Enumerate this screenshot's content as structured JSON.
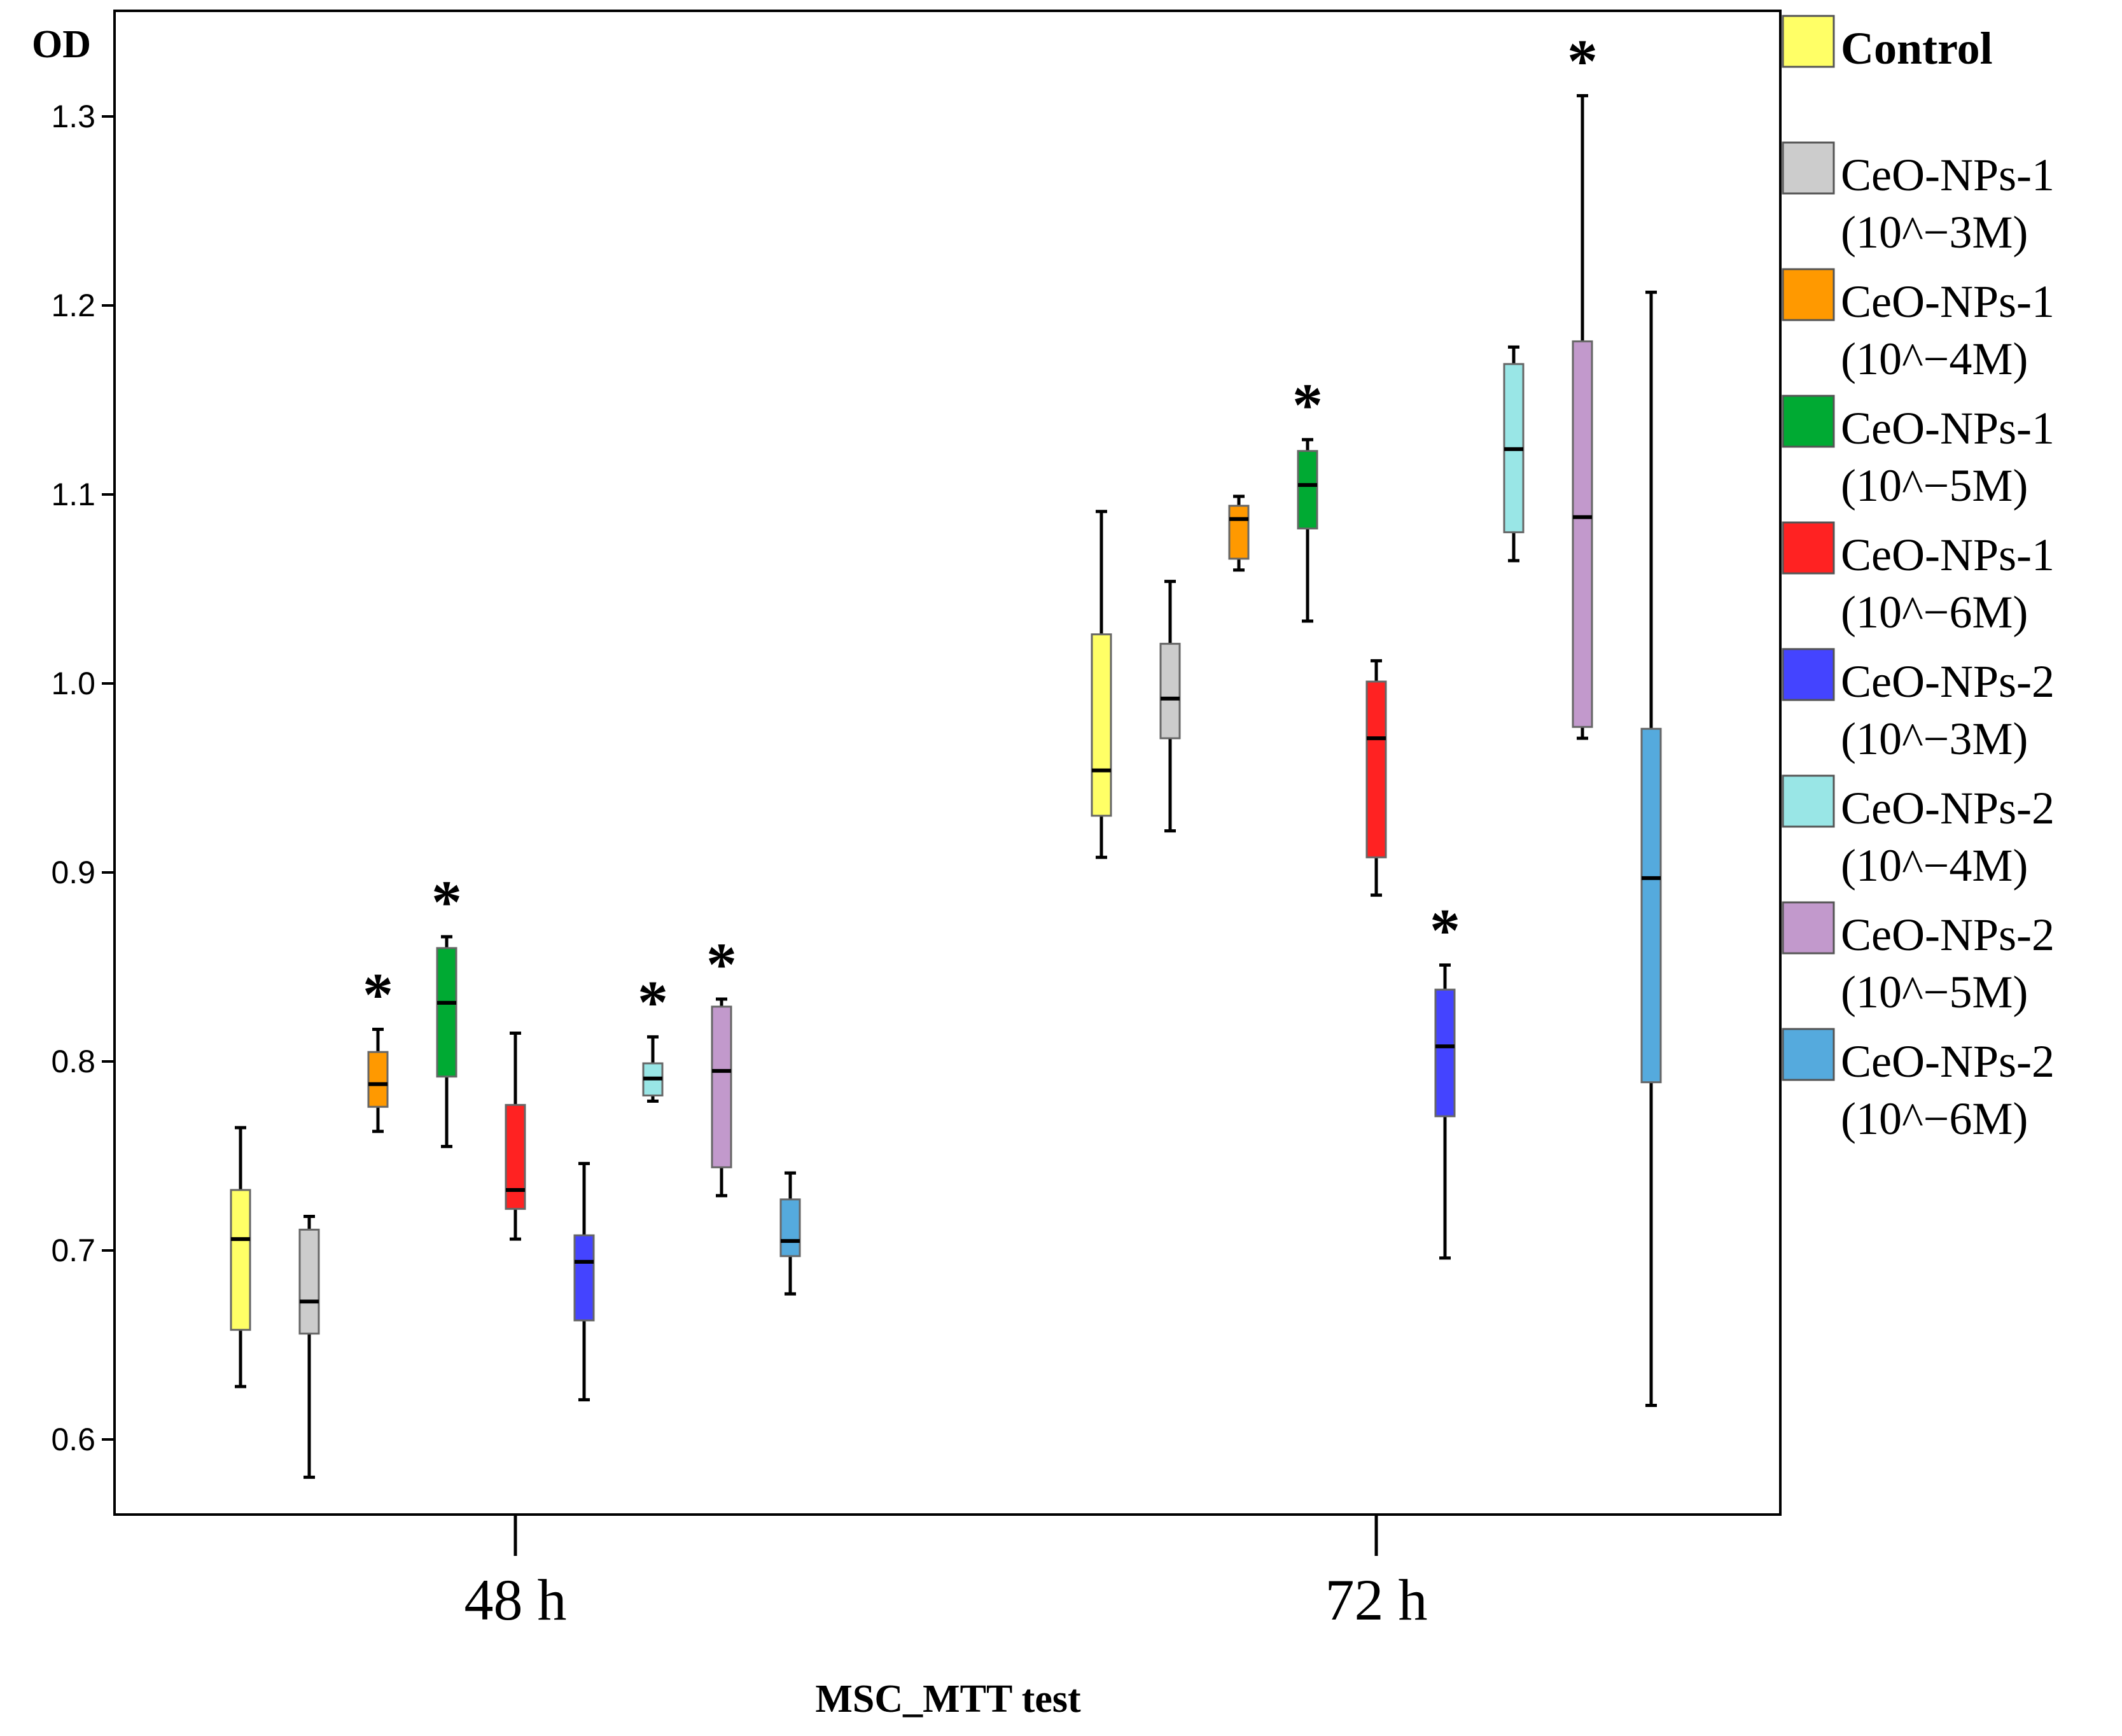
{
  "chart_data": {
    "type": "boxplot",
    "title": "",
    "ylabel": "OD",
    "xlabel": "MSC_MTT test",
    "ylim": [
      0.55,
      1.35
    ],
    "yticks": [
      0.6,
      0.7,
      0.8,
      0.9,
      1.0,
      1.1,
      1.2,
      1.3
    ],
    "ytick_labels": [
      "0.6",
      "0.7",
      "0.8",
      "0.9",
      "1.0",
      "1.1",
      "1.2",
      "1.3"
    ],
    "categories": [
      "48 h",
      "72 h"
    ],
    "legend_position": "right",
    "significance_marker": "*",
    "series": [
      {
        "name": "Control",
        "color": "#FFFF66",
        "boxes": [
          {
            "whisker_low": 0.628,
            "q1": 0.658,
            "median": 0.706,
            "q3": 0.732,
            "whisker_high": 0.765,
            "sig": false
          },
          {
            "whisker_low": 0.908,
            "q1": 0.93,
            "median": 0.954,
            "q3": 1.026,
            "whisker_high": 1.091,
            "sig": false
          }
        ]
      },
      {
        "name": "CeO-NPs-1 (10^−3M)",
        "color": "#CCCCCC",
        "boxes": [
          {
            "whisker_low": 0.58,
            "q1": 0.656,
            "median": 0.673,
            "q3": 0.711,
            "whisker_high": 0.718,
            "sig": false
          },
          {
            "whisker_low": 0.922,
            "q1": 0.971,
            "median": 0.992,
            "q3": 1.021,
            "whisker_high": 1.054,
            "sig": false
          }
        ]
      },
      {
        "name": "CeO-NPs-1 (10^−4M)",
        "color": "#FF9900",
        "boxes": [
          {
            "whisker_low": 0.763,
            "q1": 0.776,
            "median": 0.788,
            "q3": 0.805,
            "whisker_high": 0.817,
            "sig": true
          },
          {
            "whisker_low": 1.06,
            "q1": 1.066,
            "median": 1.087,
            "q3": 1.094,
            "whisker_high": 1.099,
            "sig": false
          }
        ]
      },
      {
        "name": "CeO-NPs-1 (10^−5M)",
        "color": "#00AA33",
        "boxes": [
          {
            "whisker_low": 0.755,
            "q1": 0.792,
            "median": 0.831,
            "q3": 0.86,
            "whisker_high": 0.866,
            "sig": true
          },
          {
            "whisker_low": 1.033,
            "q1": 1.082,
            "median": 1.105,
            "q3": 1.123,
            "whisker_high": 1.129,
            "sig": true
          }
        ]
      },
      {
        "name": "CeO-NPs-1 (10^−6M)",
        "color": "#FF2222",
        "boxes": [
          {
            "whisker_low": 0.706,
            "q1": 0.722,
            "median": 0.732,
            "q3": 0.777,
            "whisker_high": 0.815,
            "sig": false
          },
          {
            "whisker_low": 0.888,
            "q1": 0.908,
            "median": 0.971,
            "q3": 1.001,
            "whisker_high": 1.012,
            "sig": false
          }
        ]
      },
      {
        "name": "CeO-NPs-2 (10^−3M)",
        "color": "#4444FF",
        "boxes": [
          {
            "whisker_low": 0.621,
            "q1": 0.663,
            "median": 0.694,
            "q3": 0.708,
            "whisker_high": 0.746,
            "sig": false
          },
          {
            "whisker_low": 0.696,
            "q1": 0.771,
            "median": 0.808,
            "q3": 0.838,
            "whisker_high": 0.851,
            "sig": true
          }
        ]
      },
      {
        "name": "CeO-NPs-2 (10^−4M)",
        "color": "#99E6E6",
        "boxes": [
          {
            "whisker_low": 0.779,
            "q1": 0.782,
            "median": 0.791,
            "q3": 0.799,
            "whisker_high": 0.813,
            "sig": true
          },
          {
            "whisker_low": 1.065,
            "q1": 1.08,
            "median": 1.124,
            "q3": 1.169,
            "whisker_high": 1.178,
            "sig": false
          }
        ]
      },
      {
        "name": "CeO-NPs-2 (10^−5M)",
        "color": "#C299CC",
        "boxes": [
          {
            "whisker_low": 0.729,
            "q1": 0.744,
            "median": 0.795,
            "q3": 0.829,
            "whisker_high": 0.833,
            "sig": true
          },
          {
            "whisker_low": 0.971,
            "q1": 0.977,
            "median": 1.088,
            "q3": 1.181,
            "whisker_high": 1.311,
            "sig": true
          }
        ]
      },
      {
        "name": "CeO-NPs-2 (10^−6M)",
        "color": "#55AADD",
        "boxes": [
          {
            "whisker_low": 0.677,
            "q1": 0.697,
            "median": 0.705,
            "q3": 0.727,
            "whisker_high": 0.741,
            "sig": false
          },
          {
            "whisker_low": 0.618,
            "q1": 0.789,
            "median": 0.897,
            "q3": 0.976,
            "whisker_high": 1.207,
            "sig": false
          }
        ]
      }
    ],
    "legend": [
      {
        "line1": "Control",
        "line2": "",
        "color": "#FFFF66"
      },
      {
        "line1": "CeO-NPs-1",
        "line2": "(10^−3M)",
        "color": "#CCCCCC"
      },
      {
        "line1": "CeO-NPs-1",
        "line2": "(10^−4M)",
        "color": "#FF9900"
      },
      {
        "line1": "CeO-NPs-1",
        "line2": "(10^−5M)",
        "color": "#00AA33"
      },
      {
        "line1": "CeO-NPs-1",
        "line2": "(10^−6M)",
        "color": "#FF2222"
      },
      {
        "line1": "CeO-NPs-2",
        "line2": "(10^−3M)",
        "color": "#4444FF"
      },
      {
        "line1": "CeO-NPs-2",
        "line2": "(10^−4M)",
        "color": "#99E6E6"
      },
      {
        "line1": "CeO-NPs-2",
        "line2": "(10^−5M)",
        "color": "#C299CC"
      },
      {
        "line1": "CeO-NPs-2",
        "line2": "(10^−6M)",
        "color": "#55AADD"
      }
    ]
  }
}
